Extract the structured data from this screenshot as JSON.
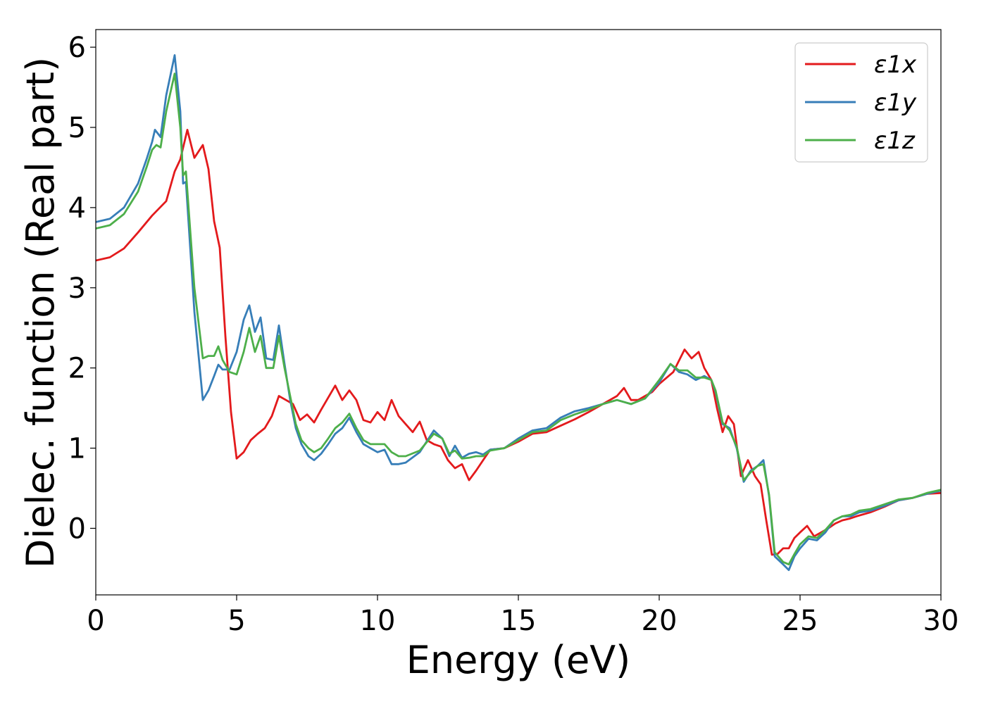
{
  "chart_data": {
    "type": "line",
    "title": "",
    "xlabel": "Energy (eV)",
    "ylabel": "Dielec. function (Real part)",
    "xlim": [
      0,
      30
    ],
    "ylim": [
      -0.83,
      6.22
    ],
    "xticks": [
      0,
      5,
      10,
      15,
      20,
      25,
      30
    ],
    "yticks": [
      0,
      1,
      2,
      3,
      4,
      5,
      6
    ],
    "grid": false,
    "legend_position": "top-right",
    "series": [
      {
        "name": "ε1x",
        "color": "#e31a1c",
        "x": [
          0,
          0.5,
          1,
          1.5,
          2,
          2.5,
          2.8,
          3.0,
          3.25,
          3.5,
          3.8,
          4.0,
          4.2,
          4.4,
          4.6,
          4.8,
          5.0,
          5.25,
          5.5,
          5.75,
          6.0,
          6.25,
          6.5,
          6.75,
          7.0,
          7.25,
          7.5,
          7.75,
          8.0,
          8.25,
          8.5,
          8.75,
          9.0,
          9.25,
          9.5,
          9.75,
          10.0,
          10.25,
          10.5,
          10.75,
          11.0,
          11.25,
          11.5,
          11.75,
          12.0,
          12.25,
          12.5,
          12.75,
          13.0,
          13.25,
          13.5,
          13.75,
          14.0,
          14.5,
          15.0,
          15.5,
          16.0,
          16.5,
          17.0,
          17.5,
          18.0,
          18.5,
          18.75,
          19.0,
          19.25,
          19.5,
          19.75,
          20.0,
          20.5,
          20.9,
          21.15,
          21.4,
          21.6,
          21.85,
          22.05,
          22.25,
          22.45,
          22.65,
          22.9,
          23.15,
          23.4,
          23.6,
          23.8,
          24.0,
          24.2,
          24.4,
          24.6,
          24.8,
          25.0,
          25.25,
          25.5,
          25.75,
          26.0,
          26.25,
          26.5,
          26.75,
          27.0,
          27.5,
          28.0,
          28.5,
          29.0,
          29.5,
          30.0
        ],
        "values": [
          3.34,
          3.38,
          3.49,
          3.69,
          3.9,
          4.08,
          4.45,
          4.6,
          4.97,
          4.62,
          4.78,
          4.48,
          3.83,
          3.5,
          2.4,
          1.45,
          0.87,
          0.95,
          1.1,
          1.18,
          1.25,
          1.4,
          1.65,
          1.6,
          1.55,
          1.35,
          1.42,
          1.32,
          1.48,
          1.63,
          1.78,
          1.6,
          1.72,
          1.6,
          1.35,
          1.32,
          1.45,
          1.35,
          1.6,
          1.4,
          1.3,
          1.2,
          1.33,
          1.1,
          1.05,
          1.02,
          0.85,
          0.75,
          0.8,
          0.6,
          0.72,
          0.85,
          0.98,
          1.0,
          1.08,
          1.18,
          1.2,
          1.28,
          1.36,
          1.45,
          1.55,
          1.65,
          1.75,
          1.6,
          1.6,
          1.65,
          1.7,
          1.8,
          1.95,
          2.23,
          2.12,
          2.2,
          2.0,
          1.85,
          1.5,
          1.2,
          1.4,
          1.3,
          0.65,
          0.85,
          0.65,
          0.55,
          0.1,
          -0.33,
          -0.32,
          -0.25,
          -0.25,
          -0.12,
          -0.05,
          0.03,
          -0.1,
          -0.05,
          0.0,
          0.06,
          0.1,
          0.12,
          0.15,
          0.2,
          0.27,
          0.35,
          0.38,
          0.43,
          0.44
        ]
      },
      {
        "name": "ε1y",
        "color": "#377eb8",
        "x": [
          0,
          0.5,
          1,
          1.5,
          1.8,
          2.0,
          2.1,
          2.3,
          2.5,
          2.8,
          3.0,
          3.1,
          3.2,
          3.5,
          3.8,
          4.0,
          4.2,
          4.35,
          4.5,
          4.75,
          5.0,
          5.25,
          5.45,
          5.65,
          5.85,
          6.05,
          6.3,
          6.5,
          6.7,
          6.9,
          7.1,
          7.3,
          7.55,
          7.75,
          8.0,
          8.25,
          8.5,
          8.75,
          9.0,
          9.25,
          9.5,
          9.75,
          10.0,
          10.25,
          10.5,
          10.75,
          11.0,
          11.5,
          12.0,
          12.3,
          12.55,
          12.75,
          13.0,
          13.25,
          13.5,
          13.75,
          14.0,
          14.5,
          15.0,
          15.5,
          16.0,
          16.5,
          17.0,
          17.5,
          18.0,
          18.5,
          19.0,
          19.5,
          20.0,
          20.4,
          20.7,
          21.0,
          21.3,
          21.6,
          21.85,
          22.0,
          22.25,
          22.5,
          22.75,
          23.0,
          23.25,
          23.5,
          23.7,
          23.9,
          24.1,
          24.4,
          24.6,
          24.8,
          25.0,
          25.3,
          25.6,
          25.9,
          26.2,
          26.5,
          26.8,
          27.1,
          27.5,
          28.0,
          28.5,
          29.0,
          29.5,
          30.0
        ],
        "values": [
          3.82,
          3.86,
          4.0,
          4.3,
          4.6,
          4.82,
          4.97,
          4.88,
          5.4,
          5.9,
          5.2,
          4.3,
          4.32,
          2.7,
          1.6,
          1.72,
          1.9,
          2.04,
          1.98,
          1.98,
          2.2,
          2.6,
          2.78,
          2.45,
          2.63,
          2.12,
          2.1,
          2.53,
          2.05,
          1.6,
          1.25,
          1.05,
          0.9,
          0.85,
          0.93,
          1.05,
          1.18,
          1.25,
          1.38,
          1.2,
          1.05,
          1.0,
          0.95,
          0.98,
          0.8,
          0.8,
          0.82,
          0.95,
          1.22,
          1.12,
          0.9,
          1.03,
          0.88,
          0.93,
          0.95,
          0.92,
          0.98,
          1.0,
          1.12,
          1.22,
          1.25,
          1.38,
          1.46,
          1.5,
          1.55,
          1.6,
          1.55,
          1.62,
          1.82,
          2.05,
          1.95,
          1.92,
          1.85,
          1.9,
          1.85,
          1.7,
          1.3,
          1.25,
          1.0,
          0.58,
          0.72,
          0.78,
          0.85,
          0.4,
          -0.35,
          -0.45,
          -0.52,
          -0.35,
          -0.25,
          -0.13,
          -0.15,
          -0.05,
          0.1,
          0.15,
          0.15,
          0.2,
          0.22,
          0.28,
          0.35,
          0.38,
          0.43,
          0.47
        ]
      },
      {
        "name": "ε1z",
        "color": "#4daf4a",
        "x": [
          0,
          0.5,
          1,
          1.5,
          1.8,
          2.0,
          2.15,
          2.3,
          2.5,
          2.8,
          3.0,
          3.1,
          3.2,
          3.5,
          3.8,
          4.0,
          4.2,
          4.35,
          4.5,
          4.75,
          5.0,
          5.25,
          5.45,
          5.65,
          5.85,
          6.05,
          6.3,
          6.5,
          6.7,
          6.9,
          7.1,
          7.3,
          7.55,
          7.75,
          8.0,
          8.25,
          8.5,
          8.75,
          9.0,
          9.25,
          9.5,
          9.75,
          10.0,
          10.25,
          10.5,
          10.75,
          11.0,
          11.5,
          12.0,
          12.3,
          12.55,
          12.75,
          13.0,
          13.25,
          13.5,
          13.75,
          14.0,
          14.5,
          15.0,
          15.5,
          16.0,
          16.5,
          17.0,
          17.5,
          18.0,
          18.5,
          19.0,
          19.5,
          20.0,
          20.4,
          20.7,
          21.0,
          21.3,
          21.6,
          21.85,
          22.0,
          22.25,
          22.5,
          22.75,
          23.0,
          23.25,
          23.5,
          23.7,
          23.9,
          24.1,
          24.4,
          24.6,
          24.8,
          25.0,
          25.3,
          25.6,
          25.9,
          26.2,
          26.5,
          26.8,
          27.1,
          27.5,
          28.0,
          28.5,
          29.0,
          29.5,
          30.0
        ],
        "values": [
          3.74,
          3.78,
          3.92,
          4.2,
          4.5,
          4.72,
          4.78,
          4.75,
          5.2,
          5.67,
          5.0,
          4.4,
          4.45,
          3.0,
          2.12,
          2.15,
          2.15,
          2.27,
          2.1,
          1.95,
          1.92,
          2.2,
          2.5,
          2.2,
          2.4,
          2.0,
          2.0,
          2.4,
          2.0,
          1.65,
          1.3,
          1.1,
          1.0,
          0.95,
          1.0,
          1.12,
          1.25,
          1.32,
          1.43,
          1.25,
          1.1,
          1.05,
          1.05,
          1.05,
          0.95,
          0.9,
          0.9,
          0.97,
          1.18,
          1.12,
          0.93,
          0.97,
          0.87,
          0.88,
          0.9,
          0.9,
          0.97,
          1.0,
          1.1,
          1.2,
          1.22,
          1.35,
          1.42,
          1.48,
          1.55,
          1.6,
          1.55,
          1.62,
          1.85,
          2.05,
          1.97,
          1.97,
          1.88,
          1.88,
          1.85,
          1.72,
          1.32,
          1.22,
          1.02,
          0.6,
          0.7,
          0.78,
          0.8,
          0.42,
          -0.3,
          -0.42,
          -0.45,
          -0.32,
          -0.2,
          -0.1,
          -0.12,
          -0.02,
          0.1,
          0.15,
          0.17,
          0.22,
          0.24,
          0.3,
          0.36,
          0.38,
          0.44,
          0.48
        ]
      }
    ]
  }
}
